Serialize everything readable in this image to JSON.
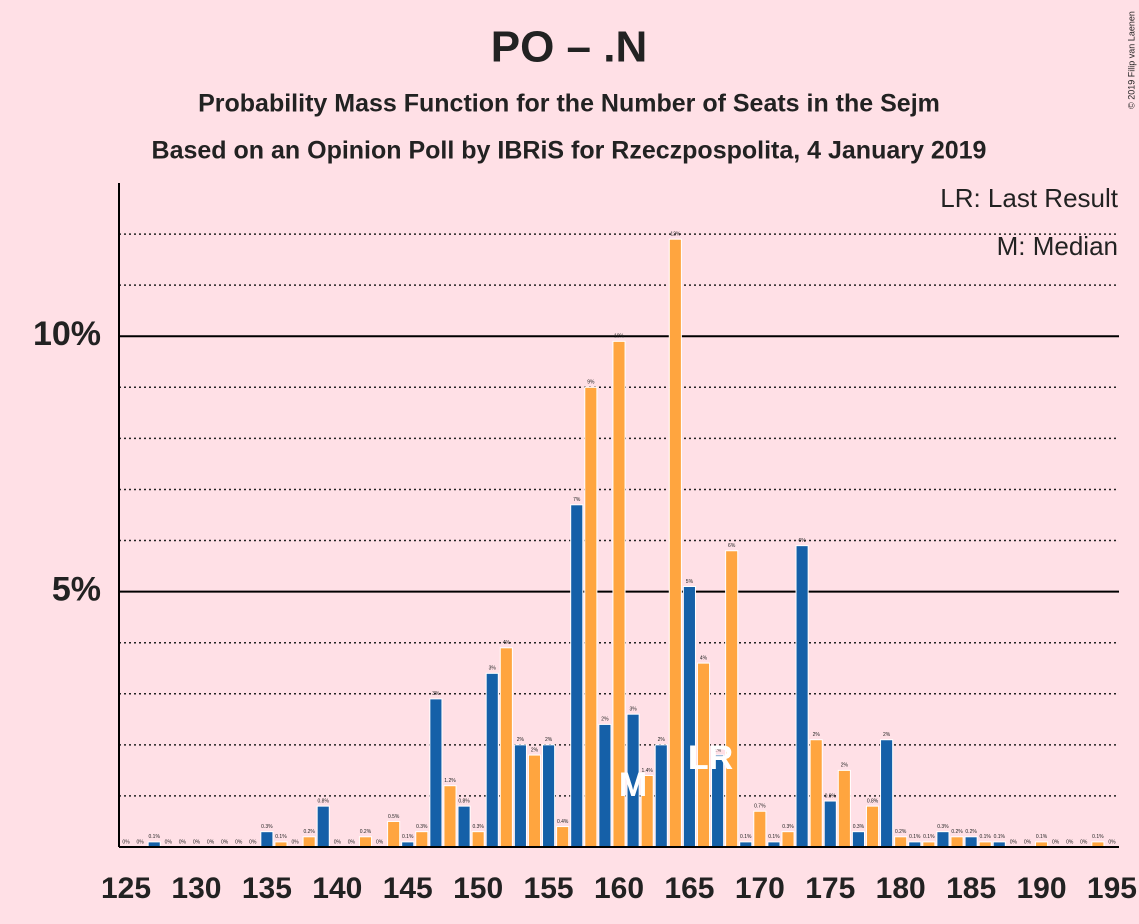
{
  "chart_data": {
    "type": "bar",
    "title": "PO – .N",
    "subtitle": "Probability Mass Function for the Number of Seats in the Sejm",
    "subtitle2": "Based on an Opinion Poll by IBRiS for Rzeczpospolita, 4 January 2019",
    "copyright": "© 2019 Filip van Laenen",
    "legend": [
      "LR: Last Result",
      "M: Median"
    ],
    "median": {
      "value": 161,
      "label": "M"
    },
    "last_result": {
      "value": 166,
      "label": "LR"
    },
    "color": [
      "#1560a8",
      "#ffa53f"
    ],
    "x": [
      125,
      126,
      127,
      128,
      129,
      130,
      131,
      132,
      133,
      134,
      135,
      136,
      137,
      138,
      139,
      140,
      141,
      142,
      143,
      144,
      145,
      146,
      147,
      148,
      149,
      150,
      151,
      152,
      153,
      154,
      155,
      156,
      157,
      158,
      159,
      160,
      161,
      162,
      163,
      164,
      165,
      166,
      167,
      168,
      169,
      170,
      171,
      172,
      173,
      174,
      175,
      176,
      177,
      178,
      179,
      180,
      181,
      182,
      183,
      184,
      185,
      186,
      187,
      188,
      189,
      190,
      191,
      192,
      193,
      194,
      195
    ],
    "values": [
      0,
      0,
      0.1,
      0,
      0,
      0,
      0,
      0,
      0,
      0,
      0.3,
      0.1,
      0,
      0.2,
      0.8,
      0,
      0,
      0.2,
      0,
      0.5,
      0.1,
      0.3,
      2.9,
      1.2,
      0.8,
      0.3,
      3.4,
      3.9,
      2.0,
      1.8,
      2.0,
      0.4,
      6.7,
      9.0,
      2.4,
      9.9,
      2.6,
      1.4,
      2.0,
      11.9,
      5.1,
      3.6,
      1.8,
      5.8,
      0.1,
      0.7,
      0.1,
      0.3,
      5.9,
      2.1,
      0.9,
      1.5,
      0.3,
      0.8,
      2.1,
      0.2,
      0.1,
      0.1,
      0.3,
      0.2,
      0.2,
      0.1,
      0.1,
      0,
      0,
      0.1,
      0,
      0,
      0,
      0.1,
      0
    ],
    "value_labels": [
      "0%",
      "0%",
      "0.1%",
      "0%",
      "0%",
      "0%",
      "0%",
      "0%",
      "0%",
      "0%",
      "0.3%",
      "0.1%",
      "0%",
      "0.2%",
      "0.8%",
      "0%",
      "0%",
      "0.2%",
      "0%",
      "0.5%",
      "0.1%",
      "0.3%",
      "3%",
      "1.2%",
      "0.8%",
      "0.3%",
      "3%",
      "4%",
      "2%",
      "2%",
      "2%",
      "0.4%",
      "7%",
      "9%",
      "2%",
      "10%",
      "3%",
      "1.4%",
      "2%",
      "12%",
      "5%",
      "4%",
      "2%",
      "6%",
      "0.1%",
      "0.7%",
      "0.1%",
      "0.3%",
      "6%",
      "2%",
      "0.9%",
      "2%",
      "0.3%",
      "0.8%",
      "2%",
      "0.2%",
      "0.1%",
      "0.1%",
      "0.3%",
      "0.2%",
      "0.2%",
      "0.1%",
      "0.1%",
      "0%",
      "0%",
      "0.1%",
      "0%",
      "0%",
      "0%",
      "0.1%",
      "0%"
    ],
    "xlim": [
      124.5,
      195.5
    ],
    "xticks": [
      125,
      130,
      135,
      140,
      145,
      150,
      155,
      160,
      165,
      170,
      175,
      180,
      185,
      190,
      195
    ],
    "ylim": [
      0,
      13
    ],
    "yticks": [
      {
        "value": 5,
        "label": "5%"
      },
      {
        "value": 10,
        "label": "10%"
      }
    ],
    "minor_yticks": [
      1,
      2,
      3,
      4,
      6,
      7,
      8,
      9,
      11,
      12
    ]
  }
}
